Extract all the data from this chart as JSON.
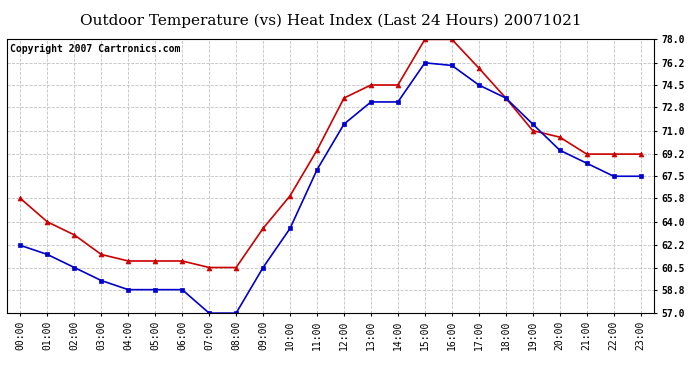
{
  "title": "Outdoor Temperature (vs) Heat Index (Last 24 Hours) 20071021",
  "copyright": "Copyright 2007 Cartronics.com",
  "x_labels": [
    "00:00",
    "01:00",
    "02:00",
    "03:00",
    "04:00",
    "05:00",
    "06:00",
    "07:00",
    "08:00",
    "09:00",
    "10:00",
    "11:00",
    "12:00",
    "13:00",
    "14:00",
    "15:00",
    "16:00",
    "17:00",
    "18:00",
    "19:00",
    "20:00",
    "21:00",
    "22:00",
    "23:00"
  ],
  "red_data": [
    65.8,
    64.0,
    63.0,
    61.5,
    61.0,
    61.0,
    61.0,
    60.5,
    60.5,
    63.5,
    66.0,
    69.5,
    73.5,
    74.5,
    74.5,
    78.0,
    78.0,
    75.8,
    73.5,
    71.0,
    70.5,
    69.2,
    69.2,
    69.2
  ],
  "blue_data": [
    62.2,
    61.5,
    60.5,
    59.5,
    58.8,
    58.8,
    58.8,
    57.0,
    57.0,
    60.5,
    63.5,
    68.0,
    71.5,
    73.2,
    73.2,
    76.2,
    76.0,
    74.5,
    73.5,
    71.5,
    69.5,
    68.5,
    67.5,
    67.5
  ],
  "ylim": [
    57.0,
    78.0
  ],
  "yticks": [
    57.0,
    58.8,
    60.5,
    62.2,
    64.0,
    65.8,
    67.5,
    69.2,
    71.0,
    72.8,
    74.5,
    76.2,
    78.0
  ],
  "red_color": "#cc0000",
  "blue_color": "#0000cc",
  "bg_color": "#ffffff",
  "grid_color": "#bbbbbb",
  "title_fontsize": 11,
  "copyright_fontsize": 7,
  "tick_fontsize": 7
}
